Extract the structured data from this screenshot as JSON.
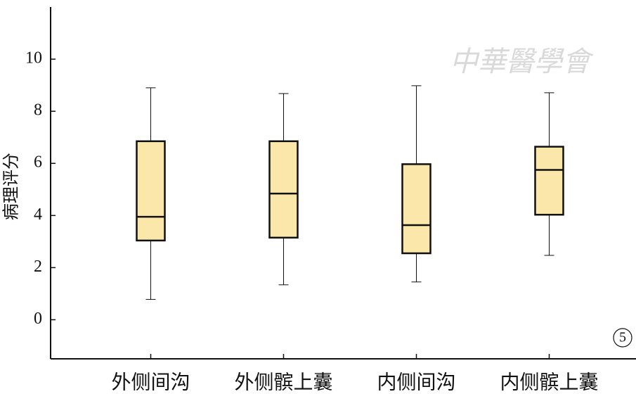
{
  "chart_data": {
    "type": "box",
    "y_label": "病理评分",
    "panel_label": "5",
    "watermark": "中華醫學會",
    "categories": [
      "外侧间沟",
      "外侧髌上囊",
      "内侧间沟",
      "内侧髌上囊"
    ],
    "boxes": [
      {
        "min": 0.78,
        "q1": 3.04,
        "median": 3.95,
        "q3": 6.85,
        "max": 8.9
      },
      {
        "min": 1.34,
        "q1": 3.15,
        "median": 4.84,
        "q3": 6.85,
        "max": 8.68
      },
      {
        "min": 1.45,
        "q1": 2.55,
        "median": 3.63,
        "q3": 5.97,
        "max": 8.98
      },
      {
        "min": 2.47,
        "q1": 4.03,
        "median": 5.75,
        "q3": 6.64,
        "max": 8.71
      }
    ],
    "color": "#fbe7a9",
    "ylim": [
      -1.5,
      12
    ],
    "yticks": [
      0,
      2,
      4,
      6,
      8,
      10
    ]
  }
}
